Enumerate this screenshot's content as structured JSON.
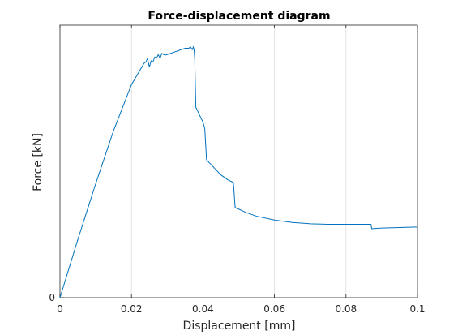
{
  "chart_data": {
    "type": "line",
    "title": "Force-displacement diagram",
    "xlabel": "Displacement [mm]",
    "ylabel": "Force [kN]",
    "xlim": [
      0,
      0.1
    ],
    "ylim": [
      0,
      1
    ],
    "xticks": [
      0,
      0.02,
      0.04,
      0.06,
      0.08,
      0.1
    ],
    "xtick_labels": [
      "0",
      "0.02",
      "0.04",
      "0.06",
      "0.08",
      "0.1"
    ],
    "yticks": [
      0
    ],
    "ytick_labels": [
      "0"
    ],
    "grid": "x-only",
    "colors": {
      "series": "#0072bd",
      "grid": "#dcdcdc",
      "axis": "#262626"
    },
    "series": [
      {
        "x": [
          0,
          0.005,
          0.01,
          0.015,
          0.02,
          0.0235,
          0.024,
          0.0245,
          0.025,
          0.0255,
          0.026,
          0.0265,
          0.027,
          0.0275,
          0.028,
          0.0285,
          0.029,
          0.0295,
          0.03,
          0.031,
          0.032,
          0.033,
          0.034,
          0.035,
          0.036,
          0.0365,
          0.037,
          0.0373,
          0.0375,
          0.0377,
          0.038,
          0.039,
          0.04,
          0.0405,
          0.041,
          0.043,
          0.045,
          0.047,
          0.0485,
          0.049,
          0.052,
          0.055,
          0.06,
          0.065,
          0.07,
          0.075,
          0.08,
          0.085,
          0.087,
          0.0872,
          0.09,
          0.095,
          0.1
        ],
        "y": [
          0,
          0.232,
          0.455,
          0.667,
          0.85,
          0.935,
          0.94,
          0.955,
          0.92,
          0.945,
          0.94,
          0.96,
          0.955,
          0.97,
          0.955,
          0.975,
          0.97,
          0.968,
          0.97,
          0.975,
          0.98,
          0.985,
          0.99,
          0.995,
          0.995,
          1.0,
          0.99,
          1.0,
          0.99,
          0.955,
          0.76,
          0.73,
          0.7,
          0.675,
          0.55,
          0.52,
          0.49,
          0.47,
          0.46,
          0.36,
          0.34,
          0.325,
          0.31,
          0.3,
          0.295,
          0.293,
          0.293,
          0.293,
          0.293,
          0.275,
          0.278,
          0.28,
          0.282
        ]
      }
    ]
  }
}
